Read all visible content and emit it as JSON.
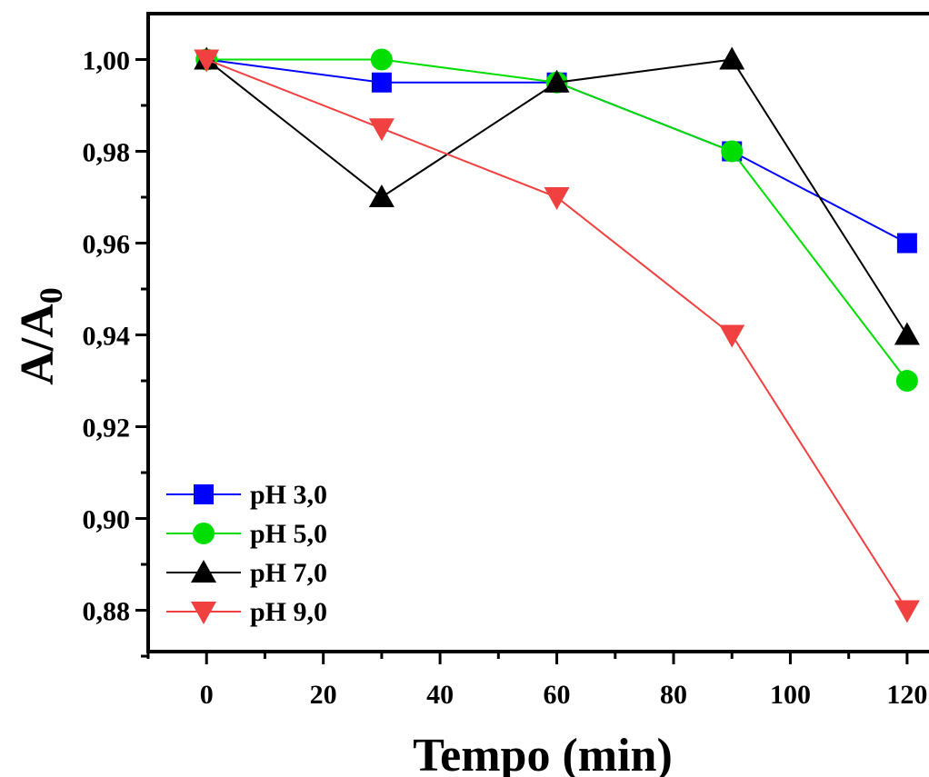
{
  "chart_data": {
    "type": "line",
    "xlabel": "Tempo (min)",
    "ylabel": {
      "main": "A/A",
      "subscript": "0"
    },
    "xlim": [
      -10,
      125
    ],
    "ylim": [
      0.871,
      1.01
    ],
    "x_ticks": [
      {
        "value": 0,
        "label": "0"
      },
      {
        "value": 20,
        "label": "20"
      },
      {
        "value": 40,
        "label": "40"
      },
      {
        "value": 60,
        "label": "60"
      },
      {
        "value": 80,
        "label": "80"
      },
      {
        "value": 100,
        "label": "100"
      },
      {
        "value": 120,
        "label": "120"
      }
    ],
    "y_ticks": [
      {
        "value": 0.88,
        "label": "0,88"
      },
      {
        "value": 0.9,
        "label": "0,90"
      },
      {
        "value": 0.92,
        "label": "0,92"
      },
      {
        "value": 0.94,
        "label": "0,94"
      },
      {
        "value": 0.96,
        "label": "0,96"
      },
      {
        "value": 0.98,
        "label": "0,98"
      },
      {
        "value": 1.0,
        "label": "1,00"
      }
    ],
    "x_minor_ticks": [
      -10,
      10,
      30,
      50,
      70,
      90,
      110
    ],
    "y_minor_ticks": [
      0.87,
      0.89,
      0.91,
      0.93,
      0.95,
      0.97,
      0.99
    ],
    "grid": false,
    "legend_position": "bottom-left",
    "x": [
      0,
      30,
      60,
      90,
      120
    ],
    "series": [
      {
        "name": "pH 3,0",
        "color": "#0000ff",
        "marker": "square",
        "values": [
          1.0,
          0.995,
          0.995,
          0.98,
          0.96
        ]
      },
      {
        "name": "pH 5,0",
        "color": "#00dd00",
        "marker": "circle",
        "values": [
          1.0,
          1.0,
          0.995,
          0.98,
          0.93
        ]
      },
      {
        "name": "pH 7,0",
        "color": "#000000",
        "marker": "triangle-up",
        "values": [
          1.0,
          0.97,
          0.995,
          1.0,
          0.94
        ]
      },
      {
        "name": "pH 9,0",
        "color": "#f04040",
        "marker": "triangle-down",
        "values": [
          1.0,
          0.985,
          0.97,
          0.94,
          0.88
        ]
      }
    ]
  }
}
